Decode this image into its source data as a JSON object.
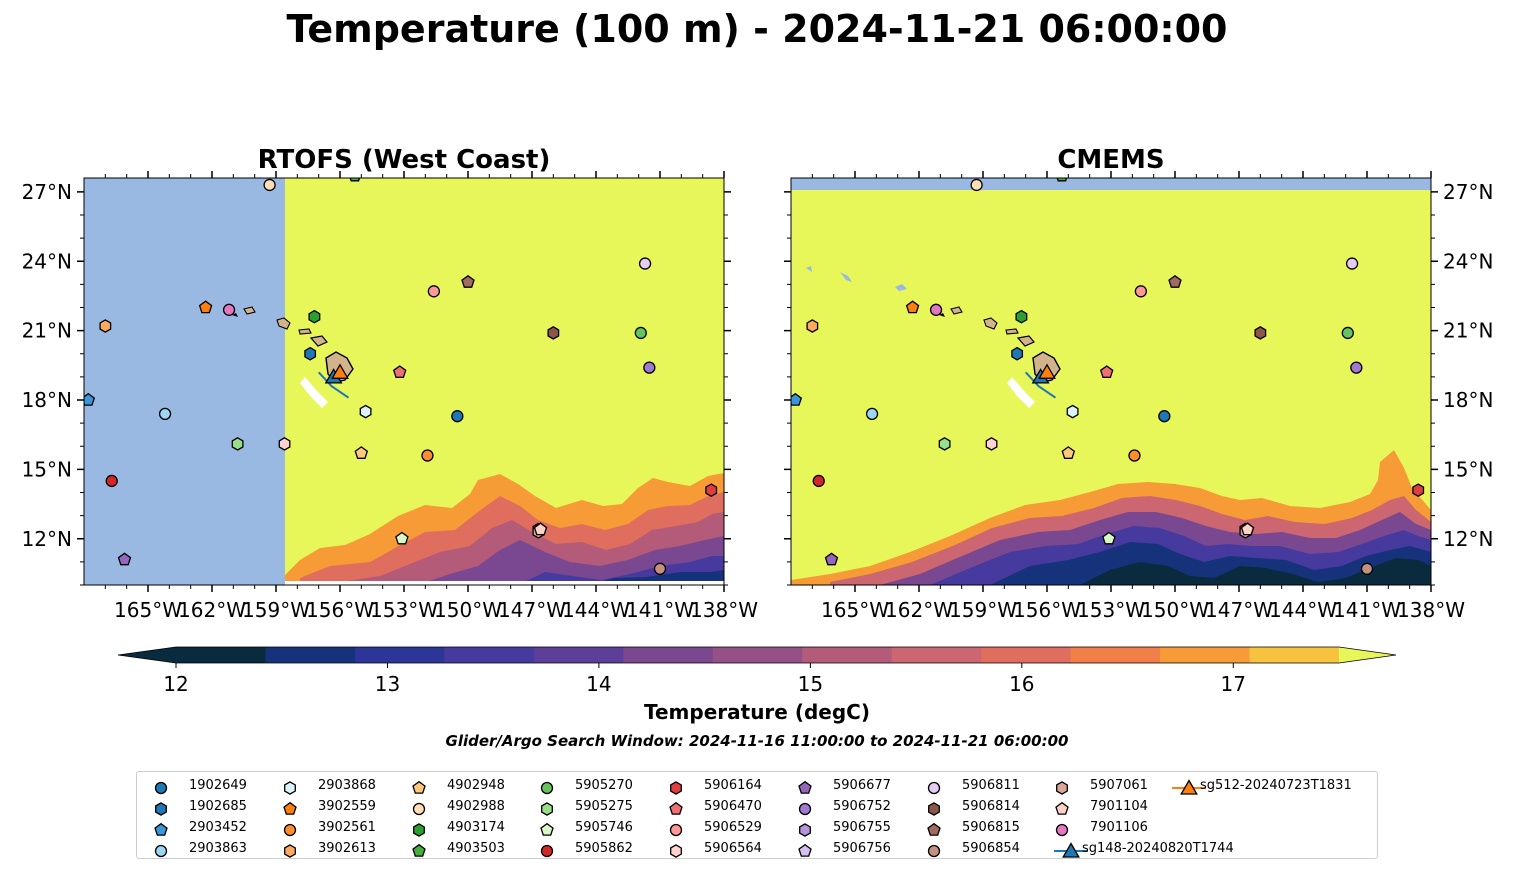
{
  "figure": {
    "suptitle": "Temperature (100 m) - 2024-11-21 06:00:00",
    "search_window": "Glider/Argo Search Window: 2024-11-16 11:00:00 to 2024-11-21 06:00:00"
  },
  "chart_data": [
    {
      "type": "heatmap",
      "title": "RTOFS (West Coast)",
      "xlim": [
        -168.0,
        -138.0
      ],
      "ylim": [
        10.0,
        27.6
      ],
      "x_ticks": [
        -165,
        -162,
        -159,
        -156,
        -153,
        -150,
        -147,
        -144,
        -141,
        -138
      ],
      "x_tick_labels": [
        "165°W",
        "162°W",
        "159°W",
        "156°W",
        "153°W",
        "150°W",
        "147°W",
        "144°W",
        "141°W",
        "138°W"
      ],
      "y_ticks": [
        12,
        15,
        18,
        21,
        24,
        27
      ],
      "y_tick_labels": [
        "12°N",
        "15°N",
        "18°N",
        "21°N",
        "24°N",
        "27°N"
      ],
      "y_axis_side": "left",
      "field_domain_lon_min": -158.6,
      "field_domain_lat_min": 10.2,
      "field_note_approx": "mostly >17.5 degC; cooler 12.5-16.5 degC tongue south of ~15N between 154W and 139W"
    },
    {
      "type": "heatmap",
      "title": "CMEMS",
      "xlim": [
        -168.0,
        -138.0
      ],
      "ylim": [
        10.0,
        27.6
      ],
      "x_ticks": [
        -165,
        -162,
        -159,
        -156,
        -153,
        -150,
        -147,
        -144,
        -141,
        -138
      ],
      "x_tick_labels": [
        "165°W",
        "162°W",
        "159°W",
        "156°W",
        "153°W",
        "150°W",
        "147°W",
        "144°W",
        "141°W",
        "138°W"
      ],
      "y_ticks": [
        12,
        15,
        18,
        21,
        24,
        27
      ],
      "y_tick_labels": [
        "12°N",
        "15°N",
        "18°N",
        "21°N",
        "24°N",
        "27°N"
      ],
      "y_axis_side": "right",
      "field_domain_lat_max": 27.1,
      "field_note_approx": "mostly >17.5 degC; cold 12-13 degC core south of ~13N near 147W-143W and 140W-138W"
    }
  ],
  "colorbar": {
    "label": "Temperature (degC)",
    "vmin": 12.0,
    "vmax": 17.5,
    "step": 0.5,
    "ticks": [
      "12",
      "13",
      "14",
      "15",
      "16",
      "17"
    ],
    "extend": "both",
    "colors": [
      "#0a2a3e",
      "#15327a",
      "#2c3598",
      "#473a9f",
      "#5d3f9a",
      "#7a4891",
      "#955185",
      "#b35b79",
      "#cc6670",
      "#e06e5e",
      "#f07f48",
      "#f79b37",
      "#f7c33f",
      "#e7f759"
    ],
    "land_color": "#d2b48c",
    "nodata_color": "#9ab9e2"
  },
  "legend": {
    "items": [
      {
        "label": "1902649",
        "marker": "circle",
        "color": "#1f77b4"
      },
      {
        "label": "1902685",
        "marker": "hexagon",
        "color": "#1f77b4"
      },
      {
        "label": "2903452",
        "marker": "pentagon",
        "color": "#3b95d6"
      },
      {
        "label": "2903863",
        "marker": "circle",
        "color": "#9dd5f2"
      },
      {
        "label": "2903868",
        "marker": "hexagon",
        "color": "#ddf3fc"
      },
      {
        "label": "3902559",
        "marker": "pentagon",
        "color": "#ff7f0e"
      },
      {
        "label": "3902561",
        "marker": "circle",
        "color": "#ff8c2e"
      },
      {
        "label": "3902613",
        "marker": "hexagon",
        "color": "#ffa95e"
      },
      {
        "label": "4902948",
        "marker": "pentagon",
        "color": "#ffc87a"
      },
      {
        "label": "4902988",
        "marker": "circle",
        "color": "#ffddb5"
      },
      {
        "label": "4903174",
        "marker": "hexagon",
        "color": "#2ca02c"
      },
      {
        "label": "4903503",
        "marker": "pentagon",
        "color": "#46ae3e"
      },
      {
        "label": "5905270",
        "marker": "circle",
        "color": "#66c45e"
      },
      {
        "label": "5905275",
        "marker": "hexagon",
        "color": "#98df8a"
      },
      {
        "label": "5905746",
        "marker": "pentagon",
        "color": "#d8f8c6"
      },
      {
        "label": "5905862",
        "marker": "circle",
        "color": "#d62728"
      },
      {
        "label": "5906164",
        "marker": "hexagon",
        "color": "#e03e3e"
      },
      {
        "label": "5906470",
        "marker": "pentagon",
        "color": "#ee7070"
      },
      {
        "label": "5906529",
        "marker": "circle",
        "color": "#ff9896"
      },
      {
        "label": "5906564",
        "marker": "hexagon",
        "color": "#ffd2d0"
      },
      {
        "label": "5906677",
        "marker": "pentagon",
        "color": "#9467bd"
      },
      {
        "label": "5906752",
        "marker": "circle",
        "color": "#a07ad0"
      },
      {
        "label": "5906755",
        "marker": "hexagon",
        "color": "#b795db"
      },
      {
        "label": "5906756",
        "marker": "pentagon",
        "color": "#d4c0ee"
      },
      {
        "label": "5906811",
        "marker": "circle",
        "color": "#e6ccf5"
      },
      {
        "label": "5906814",
        "marker": "hexagon",
        "color": "#8c564b"
      },
      {
        "label": "5906815",
        "marker": "pentagon",
        "color": "#a16c5f"
      },
      {
        "label": "5906854",
        "marker": "circle",
        "color": "#c49080"
      },
      {
        "label": "5907061",
        "marker": "hexagon",
        "color": "#dba794"
      },
      {
        "label": "7901104",
        "marker": "pentagon",
        "color": "#fcd2c8"
      },
      {
        "label": "7901106",
        "marker": "circle",
        "color": "#e377c2"
      },
      {
        "label": "sg148-20240820T1744",
        "marker": "triangle",
        "color": "#1f77b4"
      },
      {
        "label": "sg512-20240723T1831",
        "marker": "triangle",
        "color": "#ff7f0e"
      }
    ]
  },
  "floats": [
    {
      "id": "1902649",
      "lon": -150.5,
      "lat": 17.3
    },
    {
      "id": "1902685",
      "lon": -157.4,
      "lat": 20.0
    },
    {
      "id": "2903452",
      "lon": -167.8,
      "lat": 18.0
    },
    {
      "id": "2903863",
      "lon": -164.2,
      "lat": 17.4
    },
    {
      "id": "2903868",
      "lon": -154.8,
      "lat": 17.5
    },
    {
      "id": "3902559",
      "lon": -162.3,
      "lat": 22.0
    },
    {
      "id": "3902561",
      "lon": -151.9,
      "lat": 15.6
    },
    {
      "id": "3902613",
      "lon": -167.0,
      "lat": 21.2
    },
    {
      "id": "4902948",
      "lon": -155.0,
      "lat": 15.7
    },
    {
      "id": "4902988",
      "lon": -159.3,
      "lat": 27.3
    },
    {
      "id": "4903174",
      "lon": -157.2,
      "lat": 21.6
    },
    {
      "id": "4903503",
      "lon": -155.3,
      "lat": 27.7
    },
    {
      "id": "5905270",
      "lon": -141.9,
      "lat": 20.9
    },
    {
      "id": "5905275",
      "lon": -160.8,
      "lat": 16.1
    },
    {
      "id": "5905746",
      "lon": -153.1,
      "lat": 12.0
    },
    {
      "id": "5905862",
      "lon": -166.7,
      "lat": 14.5
    },
    {
      "id": "5906164",
      "lon": -138.6,
      "lat": 14.1
    },
    {
      "id": "5906470",
      "lon": -153.2,
      "lat": 19.2
    },
    {
      "id": "5906529",
      "lon": -151.6,
      "lat": 22.7
    },
    {
      "id": "5906564",
      "lon": -158.6,
      "lat": 16.1
    },
    {
      "id": "5906677",
      "lon": -166.1,
      "lat": 11.1
    },
    {
      "id": "5906752",
      "lon": -141.5,
      "lat": 19.4
    },
    {
      "id": "5906755",
      "lon": -146.7,
      "lat": 12.4
    },
    {
      "id": "5906756",
      "lon": -146.6,
      "lat": 12.4
    },
    {
      "id": "5906811",
      "lon": -141.7,
      "lat": 23.9
    },
    {
      "id": "5906814",
      "lon": -146.0,
      "lat": 20.9
    },
    {
      "id": "5906815",
      "lon": -150.0,
      "lat": 23.1
    },
    {
      "id": "5906854",
      "lon": -141.0,
      "lat": 10.7
    },
    {
      "id": "5907061",
      "lon": -146.7,
      "lat": 12.3
    },
    {
      "id": "7901104",
      "lon": -146.6,
      "lat": 12.4
    },
    {
      "id": "7901106",
      "lon": -161.2,
      "lat": 21.9
    },
    {
      "id": "sg148-20240820T1744",
      "lon": -156.3,
      "lat": 19.0
    },
    {
      "id": "sg512-20240723T1831",
      "lon": -156.0,
      "lat": 19.2
    }
  ],
  "glider_track": {
    "points": [
      [
        -157.0,
        19.2
      ],
      [
        -156.4,
        18.6
      ],
      [
        -155.6,
        18.1
      ]
    ]
  }
}
